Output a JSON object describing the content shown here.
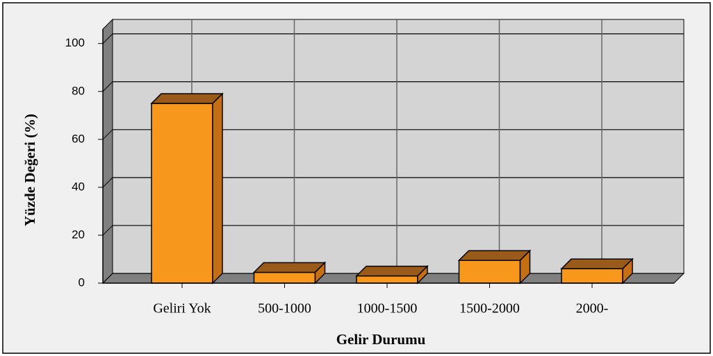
{
  "chart_data": {
    "type": "bar3d",
    "x_label": "Gelir Durumu",
    "y_label": "Yüzde Değeri (%)",
    "categories": [
      "Geliri Yok",
      "500-1000",
      "1000-1500",
      "1500-2000",
      "2000-"
    ],
    "values": [
      75,
      4.5,
      3,
      9.5,
      6
    ],
    "color": "#f7981d",
    "ylim": [
      0,
      106
    ],
    "yticks": [
      0,
      20,
      40,
      60,
      80,
      100
    ],
    "grid": true
  }
}
